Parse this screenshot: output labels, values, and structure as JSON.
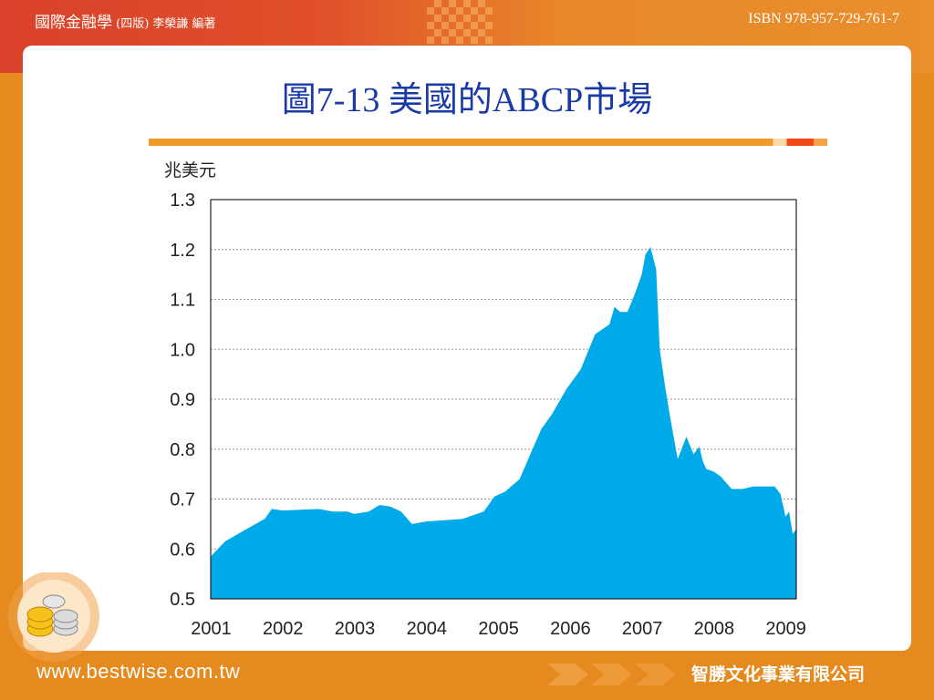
{
  "header": {
    "book_title": "國際金融學",
    "book_edition": " (四版) 李榮謙 編著",
    "isbn": "ISBN 978-957-729-761-7"
  },
  "slide": {
    "title": "圖7-13 美國的ABCP市場"
  },
  "footer": {
    "url": "www.bestwise.com.tw",
    "publisher": "智勝文化事業有限公司"
  },
  "colors": {
    "fill": "#00a9e8",
    "title": "#1a3aa8",
    "accent": "#e58a1f"
  },
  "chart_data": {
    "type": "area",
    "title": "",
    "ylabel": "兆美元",
    "xlabel": "",
    "xlim": [
      2001,
      2009.15
    ],
    "ylim": [
      0.5,
      1.3
    ],
    "grid": true,
    "x_ticks": [
      "2001",
      "2002",
      "2003",
      "2004",
      "2005",
      "2006",
      "2007",
      "2008",
      "2009"
    ],
    "y_ticks": [
      "1.3",
      "1.2",
      "1.1",
      "1.0",
      "0.9",
      "0.8",
      "0.7",
      "0.6",
      "0.5"
    ],
    "x": [
      2001.0,
      2001.2,
      2001.5,
      2001.75,
      2001.85,
      2002.0,
      2002.5,
      2002.7,
      2002.9,
      2003.0,
      2003.2,
      2003.35,
      2003.5,
      2003.65,
      2003.8,
      2004.0,
      2004.5,
      2004.8,
      2004.95,
      2005.1,
      2005.3,
      2005.45,
      2005.6,
      2005.75,
      2005.95,
      2006.15,
      2006.35,
      2006.55,
      2006.62,
      2006.7,
      2006.8,
      2006.9,
      2007.0,
      2007.05,
      2007.12,
      2007.2,
      2007.25,
      2007.32,
      2007.4,
      2007.5,
      2007.62,
      2007.72,
      2007.8,
      2007.85,
      2007.9,
      2008.0,
      2008.1,
      2008.25,
      2008.4,
      2008.55,
      2008.85,
      2008.93,
      2009.0,
      2009.05,
      2009.1,
      2009.15
    ],
    "y": [
      0.585,
      0.615,
      0.64,
      0.66,
      0.68,
      0.677,
      0.68,
      0.675,
      0.675,
      0.67,
      0.675,
      0.688,
      0.685,
      0.675,
      0.65,
      0.655,
      0.66,
      0.675,
      0.705,
      0.715,
      0.74,
      0.79,
      0.84,
      0.87,
      0.92,
      0.96,
      1.03,
      1.05,
      1.085,
      1.075,
      1.075,
      1.11,
      1.15,
      1.19,
      1.205,
      1.16,
      1.0,
      0.93,
      0.86,
      0.78,
      0.825,
      0.79,
      0.805,
      0.775,
      0.76,
      0.755,
      0.745,
      0.72,
      0.72,
      0.725,
      0.725,
      0.71,
      0.665,
      0.675,
      0.63,
      0.64
    ]
  }
}
